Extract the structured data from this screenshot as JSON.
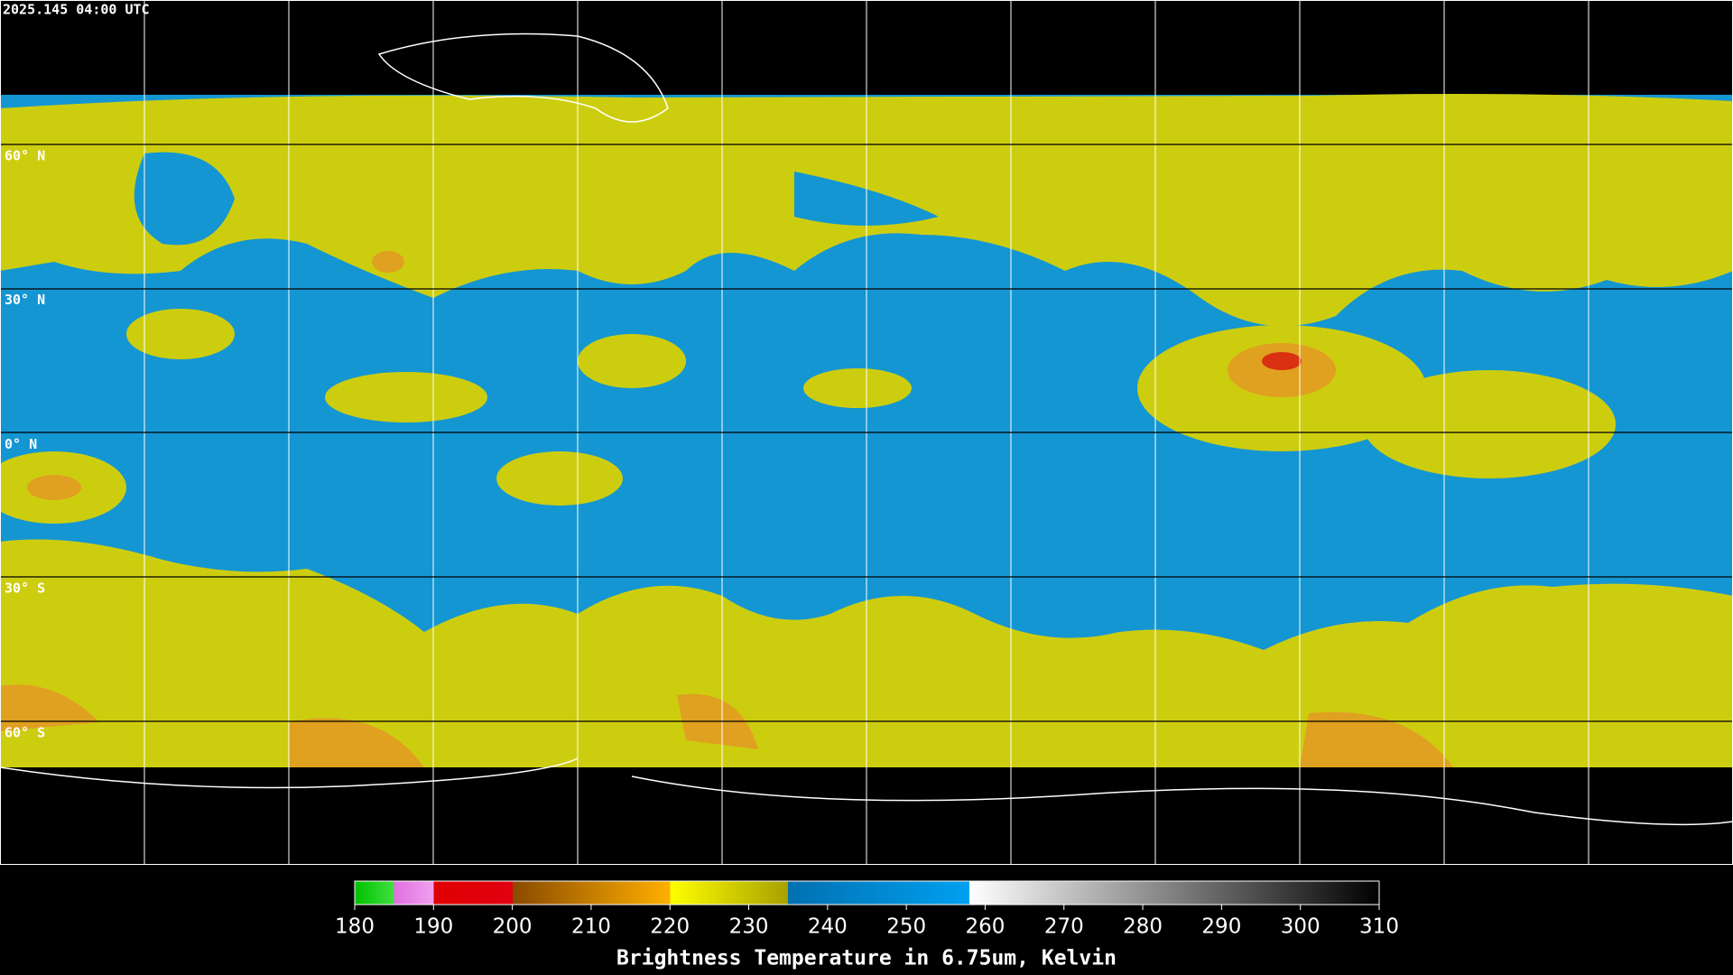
{
  "header": {
    "timestamp": "2025.145 04:00 UTC"
  },
  "map": {
    "latitude_labels": [
      "60° N",
      "30° N",
      "0° N",
      "30° S",
      "60° S"
    ]
  },
  "colorbar": {
    "range": [
      180,
      310
    ],
    "ticks": [
      180,
      190,
      200,
      210,
      220,
      230,
      240,
      250,
      260,
      270,
      280,
      290,
      300,
      310
    ],
    "title": "Brightness Temperature in 6.75um, Kelvin"
  }
}
